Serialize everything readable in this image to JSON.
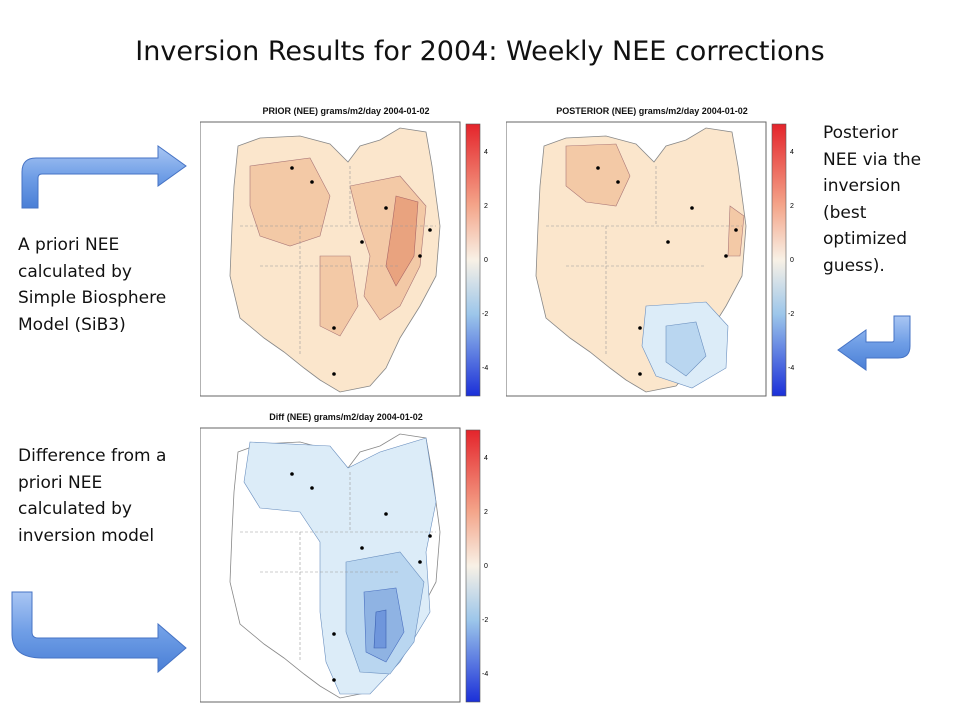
{
  "slide": {
    "title": "Inversion Results for 2004:  Weekly NEE corrections"
  },
  "captions": {
    "prior": [
      "A priori NEE",
      "calculated by",
      "Simple Biosphere",
      "Model (SiB3)"
    ],
    "posterior": [
      "Posterior",
      "NEE via the",
      "inversion",
      "(best",
      "optimized",
      "guess)."
    ],
    "diff": [
      "Difference from a",
      "priori NEE",
      "calculated by",
      "inversion model"
    ]
  },
  "panels": {
    "prior": {
      "title": "PRIOR (NEE) grams/m2/day 2004-01-02",
      "colorbar_ticks": [
        "4",
        "2",
        "0",
        "-2",
        "-4"
      ]
    },
    "posterior": {
      "title": "POSTERIOR (NEE) grams/m2/day 2004-01-02",
      "colorbar_ticks": [
        "4",
        "2",
        "0",
        "-2",
        "-4"
      ]
    },
    "diff": {
      "title": "Diff (NEE) grams/m2/day 2004-01-02",
      "colorbar_ticks": [
        "4",
        "2",
        "0",
        "-2",
        "-4"
      ]
    }
  },
  "colors": {
    "arrow": "#5b8ee0",
    "positive_light": "#fbe6cc",
    "positive_mid": "#f3c9a6",
    "positive_dark": "#e9a37f",
    "negative_light": "#dcecf8",
    "negative_mid": "#b9d6f0",
    "negative_dark": "#8fb3e3"
  }
}
